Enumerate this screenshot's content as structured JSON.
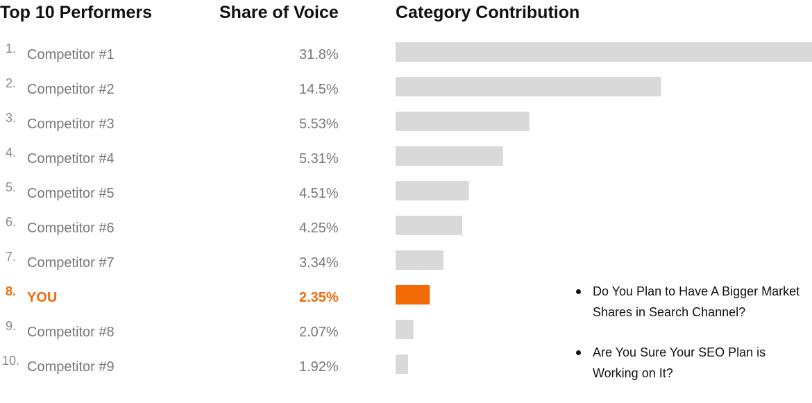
{
  "headers": {
    "top_performers": "Top 10 Performers",
    "share_of_voice": "Share of Voice",
    "category_contribution": "Category Contribution"
  },
  "colors": {
    "bar": "#d9d9d9",
    "highlight": "#f26a06"
  },
  "chart_data": {
    "type": "bar",
    "orientation": "horizontal",
    "categories": [
      "Competitor #1",
      "Competitor #2",
      "Competitor #3",
      "Competitor #4",
      "Competitor #5",
      "Competitor #6",
      "Competitor #7",
      "YOU",
      "Competitor #8",
      "Competitor #9"
    ],
    "ranks": [
      "1.",
      "2.",
      "3.",
      "4.",
      "5.",
      "6.",
      "7.",
      "8.",
      "9.",
      "10."
    ],
    "values": [
      31.8,
      14.5,
      5.53,
      5.31,
      4.51,
      4.25,
      3.34,
      2.35,
      2.07,
      1.92
    ],
    "value_labels": [
      "31.8%",
      "14.5%",
      "5.53%",
      "5.31%",
      "4.51%",
      "4.25%",
      "3.34%",
      "2.35%",
      "2.07%",
      "1.92%"
    ],
    "category_contribution": [
      100,
      63.7,
      32.1,
      25.8,
      17.6,
      16.0,
      11.5,
      8.2,
      4.3,
      3.0
    ],
    "highlight_index": 7,
    "xlim": [
      0,
      100
    ]
  },
  "bullets": [
    "Do You Plan to Have A Bigger Market Shares in Search Channel?",
    "Are You Sure Your SEO Plan is Working on It?"
  ]
}
